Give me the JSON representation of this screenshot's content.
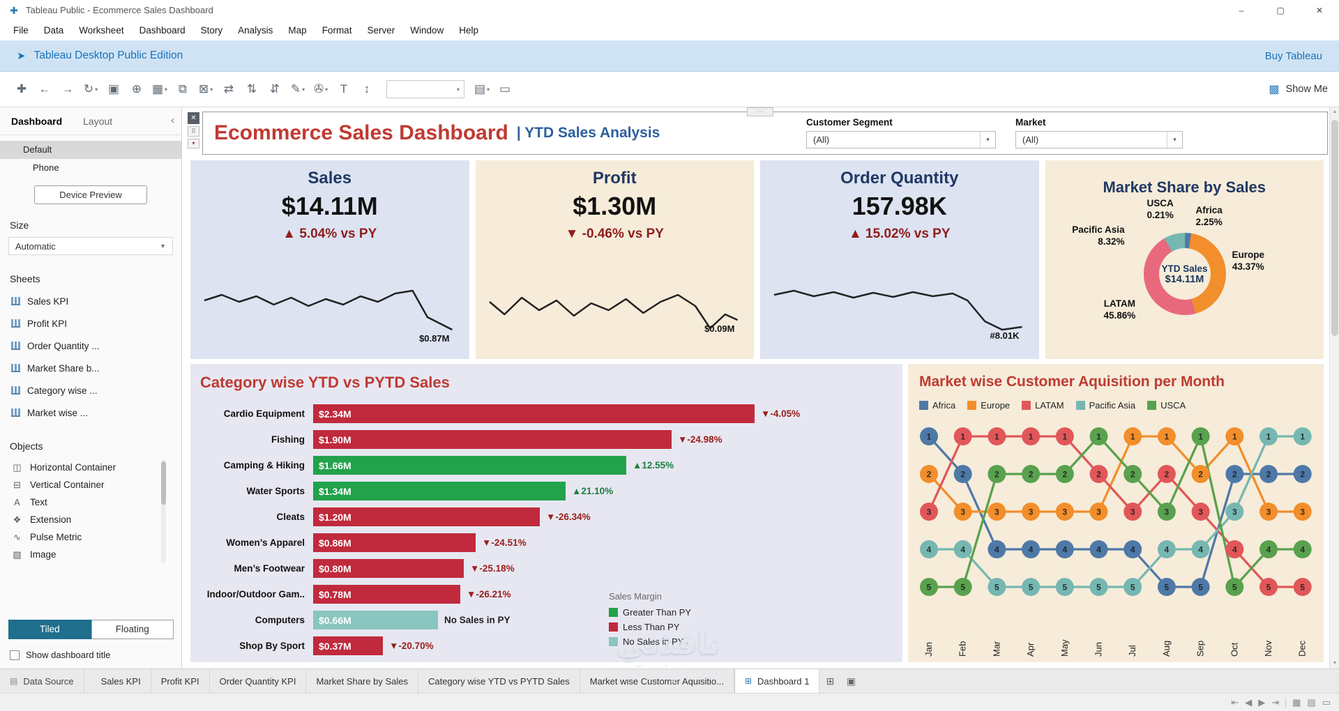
{
  "window": {
    "title": "Tableau Public - Ecommerce Sales Dashboard",
    "menus": [
      "File",
      "Data",
      "Worksheet",
      "Dashboard",
      "Story",
      "Analysis",
      "Map",
      "Format",
      "Server",
      "Window",
      "Help"
    ],
    "controls": {
      "minimize": "–",
      "maximize": "▢",
      "close": "✕"
    },
    "logo_glyph": "✚"
  },
  "banner": {
    "icon": "➤",
    "text": "Tableau Desktop Public Edition",
    "action": "Buy Tableau"
  },
  "toolbar": {
    "show_me": "Show Me",
    "show_me_icon": "▩",
    "buttons": [
      {
        "name": "tableau-logo",
        "glyph": "✚"
      },
      {
        "name": "undo",
        "glyph": "←"
      },
      {
        "name": "redo",
        "glyph": "→"
      },
      {
        "name": "replay",
        "glyph": "↻",
        "caret": true
      },
      {
        "name": "save",
        "glyph": "▣"
      },
      {
        "name": "new-data-source",
        "glyph": "⊕"
      },
      {
        "name": "new-worksheet",
        "glyph": "▦",
        "caret": true
      },
      {
        "name": "duplicate",
        "glyph": "⧉"
      },
      {
        "name": "clear-sheet",
        "glyph": "⊠",
        "caret": true
      },
      {
        "name": "swap-rows-columns",
        "glyph": "⇄"
      },
      {
        "name": "sort-ascending",
        "glyph": "⇅"
      },
      {
        "name": "sort-descending",
        "glyph": "⇵"
      },
      {
        "name": "highlight",
        "glyph": "✎",
        "caret": true
      },
      {
        "name": "group-members",
        "glyph": "✇",
        "caret": true
      },
      {
        "name": "show-mark-labels",
        "glyph": "T"
      },
      {
        "name": "fix-axes",
        "glyph": "↕"
      },
      {
        "name": "fit-select",
        "combo": true,
        "value": ""
      },
      {
        "name": "show-hide-cards",
        "glyph": "▤",
        "caret": true
      },
      {
        "name": "presentation-mode",
        "glyph": "▭"
      }
    ]
  },
  "sidebar": {
    "tabs": [
      {
        "label": "Dashboard",
        "active": true
      },
      {
        "label": "Layout",
        "active": false
      }
    ],
    "collapse_glyph": "‹",
    "device_items": [
      {
        "label": "Default",
        "selected": true
      },
      {
        "label": "Phone",
        "selected": false
      }
    ],
    "device_preview": "Device Preview",
    "size_label": "Size",
    "size_value": "Automatic",
    "dd_caret": "▼",
    "sheets_label": "Sheets",
    "sheets": [
      "Sales KPI",
      "Profit KPI",
      "Order Quantity ...",
      "Market Share b...",
      "Category wise ...",
      "Market wise ..."
    ],
    "objects_label": "Objects",
    "objects": [
      {
        "label": "Horizontal Container",
        "icon": "horizontal-container-icon",
        "glyph": "◫"
      },
      {
        "label": "Vertical Container",
        "icon": "vertical-container-icon",
        "glyph": "⊟"
      },
      {
        "label": "Text",
        "icon": "text-object-icon",
        "glyph": "A"
      },
      {
        "label": "Extension",
        "icon": "extension-icon",
        "glyph": "❖"
      },
      {
        "label": "Pulse Metric",
        "icon": "pulse-metric-icon",
        "glyph": "∿"
      },
      {
        "label": "Image",
        "icon": "image-icon",
        "glyph": "▧"
      }
    ],
    "tiled": "Tiled",
    "floating": "Floating",
    "show_title": "Show dashboard title"
  },
  "canvas_icons": {
    "close": "✕",
    "grip": "⠿",
    "caret": "▾",
    "dots": "⋯",
    "scroll_up": "▲",
    "scroll_down": "▼"
  },
  "dashboard": {
    "title": "Ecommerce Sales Dashboard",
    "subtitle": "| YTD Sales Analysis",
    "filters": [
      {
        "label": "Customer Segment",
        "value": "(All)"
      },
      {
        "label": "Market",
        "value": "(All)"
      }
    ]
  },
  "kpis": [
    {
      "title": "Sales",
      "value": "$14.11M",
      "delta": "▲ 5.04% vs PY",
      "delta_dir": "up",
      "spark_label": "$0.87M",
      "bg": "#dde3f1",
      "spark": [
        [
          0,
          0.38
        ],
        [
          0.07,
          0.3
        ],
        [
          0.14,
          0.4
        ],
        [
          0.21,
          0.32
        ],
        [
          0.28,
          0.44
        ],
        [
          0.35,
          0.34
        ],
        [
          0.42,
          0.46
        ],
        [
          0.49,
          0.36
        ],
        [
          0.56,
          0.44
        ],
        [
          0.63,
          0.32
        ],
        [
          0.7,
          0.4
        ],
        [
          0.77,
          0.28
        ],
        [
          0.84,
          0.24
        ],
        [
          0.9,
          0.62
        ],
        [
          1,
          0.8
        ]
      ]
    },
    {
      "title": "Profit",
      "value": "$1.30M",
      "delta": "▼ -0.46% vs PY",
      "delta_dir": "down",
      "spark_label": "$0.09M",
      "bg": "#f6ecd9",
      "spark": [
        [
          0,
          0.4
        ],
        [
          0.06,
          0.58
        ],
        [
          0.13,
          0.34
        ],
        [
          0.2,
          0.52
        ],
        [
          0.27,
          0.38
        ],
        [
          0.34,
          0.6
        ],
        [
          0.41,
          0.42
        ],
        [
          0.48,
          0.52
        ],
        [
          0.55,
          0.36
        ],
        [
          0.62,
          0.56
        ],
        [
          0.69,
          0.4
        ],
        [
          0.76,
          0.3
        ],
        [
          0.83,
          0.46
        ],
        [
          0.89,
          0.78
        ],
        [
          0.95,
          0.58
        ],
        [
          1,
          0.66
        ]
      ]
    },
    {
      "title": "Order Quantity",
      "value": "157.98K",
      "delta": "▲ 15.02% vs PY",
      "delta_dir": "up",
      "spark_label": "#8.01K",
      "bg": "#dde3f1",
      "spark": [
        [
          0,
          0.3
        ],
        [
          0.08,
          0.24
        ],
        [
          0.16,
          0.32
        ],
        [
          0.24,
          0.26
        ],
        [
          0.32,
          0.34
        ],
        [
          0.4,
          0.27
        ],
        [
          0.48,
          0.33
        ],
        [
          0.56,
          0.26
        ],
        [
          0.64,
          0.32
        ],
        [
          0.72,
          0.28
        ],
        [
          0.78,
          0.38
        ],
        [
          0.85,
          0.68
        ],
        [
          0.92,
          0.8
        ],
        [
          1,
          0.76
        ]
      ]
    }
  ],
  "market_share": {
    "title": "Market Share by Sales",
    "center_line1": "YTD Sales",
    "center_line2": "$14.11M",
    "segments": [
      {
        "name": "USCA",
        "pct": 0.21,
        "color": "#59a14f"
      },
      {
        "name": "Africa",
        "pct": 2.25,
        "color": "#4e79a7"
      },
      {
        "name": "Europe",
        "pct": 43.37,
        "color": "#f28e2b"
      },
      {
        "name": "LATAM",
        "pct": 45.86,
        "color": "#e8697d"
      },
      {
        "name": "Pacific Asia",
        "pct": 8.32,
        "color": "#76b7b2"
      }
    ]
  },
  "category_chart": {
    "title": "Category wise YTD vs PYTD Sales",
    "max_value": 2.34,
    "rows": [
      {
        "label": "Cardio Equipment",
        "value": 2.34,
        "value_label": "$2.34M",
        "bar": "red",
        "delta": "▼-4.05%",
        "delta_dir": "down"
      },
      {
        "label": "Fishing",
        "value": 1.9,
        "value_label": "$1.90M",
        "bar": "red",
        "delta": "▼-24.98%",
        "delta_dir": "down"
      },
      {
        "label": "Camping & Hiking",
        "value": 1.66,
        "value_label": "$1.66M",
        "bar": "green",
        "delta": "▲12.55%",
        "delta_dir": "up"
      },
      {
        "label": "Water Sports",
        "value": 1.34,
        "value_label": "$1.34M",
        "bar": "green",
        "delta": "▲21.10%",
        "delta_dir": "up"
      },
      {
        "label": "Cleats",
        "value": 1.2,
        "value_label": "$1.20M",
        "bar": "red",
        "delta": "▼-26.34%",
        "delta_dir": "down"
      },
      {
        "label": "Women’s Apparel",
        "value": 0.86,
        "value_label": "$0.86M",
        "bar": "red",
        "delta": "▼-24.51%",
        "delta_dir": "down"
      },
      {
        "label": "Men’s Footwear",
        "value": 0.8,
        "value_label": "$0.80M",
        "bar": "red",
        "delta": "▼-25.18%",
        "delta_dir": "down"
      },
      {
        "label": "Indoor/Outdoor Gam..",
        "value": 0.78,
        "value_label": "$0.78M",
        "bar": "red",
        "delta": "▼-26.21%",
        "delta_dir": "down"
      },
      {
        "label": "Computers",
        "value": 0.66,
        "value_label": "$0.66M",
        "bar": "teal",
        "delta": "No Sales in PY",
        "delta_dir": "none"
      },
      {
        "label": "Shop By Sport",
        "value": 0.37,
        "value_label": "$0.37M",
        "bar": "red",
        "delta": "▼-20.70%",
        "delta_dir": "down"
      }
    ],
    "legend": {
      "title": "Sales Margin",
      "items": [
        {
          "label": "Greater Than PY",
          "color": "#22a24b"
        },
        {
          "label": "Less Than PY",
          "color": "#c02a3c"
        },
        {
          "label": "No Sales in PY",
          "color": "#8ac5c0"
        }
      ]
    }
  },
  "bump_chart": {
    "title": "Market wise Customer Aquisition per Month",
    "months": [
      "Jan",
      "Feb",
      "Mar",
      "Apr",
      "May",
      "Jun",
      "Jul",
      "Aug",
      "Sep",
      "Oct",
      "Nov",
      "Dec"
    ],
    "series": [
      {
        "name": "Africa",
        "color": "#4e79a7",
        "ranks": [
          1,
          2,
          4,
          4,
          4,
          4,
          4,
          5,
          5,
          2,
          2,
          2
        ]
      },
      {
        "name": "Europe",
        "color": "#f28e2b",
        "ranks": [
          2,
          3,
          3,
          3,
          3,
          3,
          1,
          1,
          2,
          1,
          3,
          3
        ]
      },
      {
        "name": "LATAM",
        "color": "#e15759",
        "ranks": [
          3,
          1,
          1,
          1,
          1,
          2,
          3,
          2,
          3,
          4,
          5,
          5
        ]
      },
      {
        "name": "Pacific Asia",
        "color": "#76b7b2",
        "ranks": [
          4,
          4,
          5,
          5,
          5,
          5,
          5,
          4,
          4,
          3,
          1,
          1
        ]
      },
      {
        "name": "USCA",
        "color": "#59a14f",
        "ranks": [
          5,
          5,
          2,
          2,
          2,
          1,
          2,
          3,
          1,
          5,
          4,
          4
        ]
      }
    ]
  },
  "bottom_tabs": {
    "items": [
      {
        "label": "Data Source",
        "type": "datasource"
      },
      {
        "label": "Sales KPI",
        "type": "sheet"
      },
      {
        "label": "Profit KPI",
        "type": "sheet"
      },
      {
        "label": "Order Quantity KPI",
        "type": "sheet"
      },
      {
        "label": "Market Share by Sales",
        "type": "sheet"
      },
      {
        "label": "Category wise YTD vs PYTD Sales",
        "type": "sheet"
      },
      {
        "label": "Market wise Customer Aquisitio...",
        "type": "sheet"
      },
      {
        "label": "Dashboard 1",
        "type": "dashboard",
        "active": true
      }
    ],
    "icons": {
      "datasource": "▤",
      "sheet": "▦",
      "dashboard": "⊞"
    },
    "new_buttons": [
      {
        "name": "new-dashboard",
        "glyph": "⊞"
      },
      {
        "name": "new-story",
        "glyph": "▣"
      }
    ]
  },
  "statusbar": {
    "nav": [
      {
        "name": "first-sheet",
        "glyph": "⇤"
      },
      {
        "name": "previous-sheet",
        "glyph": "◀"
      },
      {
        "name": "next-sheet",
        "glyph": "▶"
      },
      {
        "name": "last-sheet",
        "glyph": "⇥"
      }
    ],
    "views": [
      {
        "name": "show-sheet-sorter",
        "glyph": "▦"
      },
      {
        "name": "show-filmstrip",
        "glyph": "▤"
      },
      {
        "name": "show-tabs",
        "glyph": "▭"
      }
    ]
  },
  "watermark": {
    "line1": "نافذتي",
    "line2": "nafeziy.com"
  },
  "colors": {
    "bar_red": "#c02a3c",
    "bar_green": "#22a24b",
    "bar_teal": "#8ac5c0",
    "spark": "#222222",
    "title_red": "#bf3a32",
    "kpi_navy": "#203864",
    "delta_maroon": "#8f1d1d"
  }
}
